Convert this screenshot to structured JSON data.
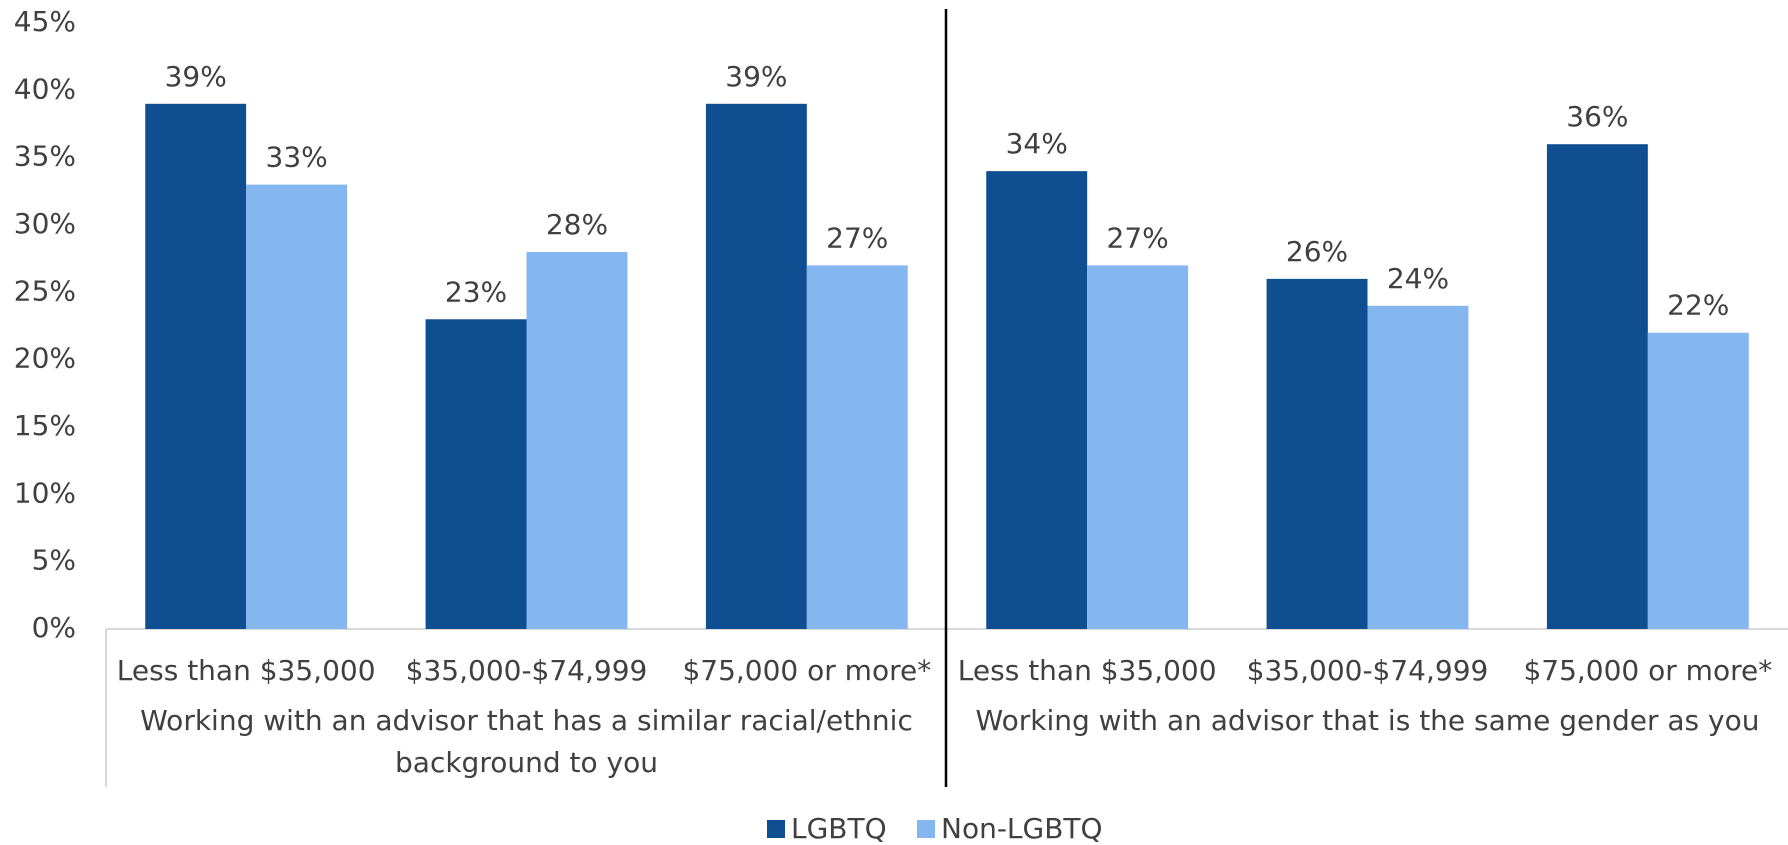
{
  "chart_data": {
    "type": "bar",
    "groups": [
      {
        "label": "Working with an advisor that has a similar racial/ethnic background to you",
        "categories": [
          "Less than $35,000",
          "$35,000-$74,999",
          "$75,000 or more*"
        ]
      },
      {
        "label": "Working with an advisor that is the same gender as you",
        "categories": [
          "Less than $35,000",
          "$35,000-$74,999",
          "$75,000 or more*"
        ]
      }
    ],
    "series": [
      {
        "name": "LGBTQ",
        "color": "#104e92",
        "values": [
          39,
          23,
          39,
          34,
          26,
          36
        ],
        "value_labels": [
          "39%",
          "23%",
          "39%",
          "34%",
          "26%",
          "36%"
        ]
      },
      {
        "name": "Non-LGBTQ",
        "color": "#84b6f0",
        "values": [
          33,
          28,
          27,
          27,
          24,
          22
        ],
        "value_labels": [
          "33%",
          "28%",
          "27%",
          "27%",
          "24%",
          "22%"
        ]
      }
    ],
    "ylim": [
      0,
      45
    ],
    "yticks": [
      {
        "value": 0,
        "label": "0%"
      },
      {
        "value": 5,
        "label": "5%"
      },
      {
        "value": 10,
        "label": "10%"
      },
      {
        "value": 15,
        "label": "15%"
      },
      {
        "value": 20,
        "label": "20%"
      },
      {
        "value": 25,
        "label": "25%"
      },
      {
        "value": 30,
        "label": "30%"
      },
      {
        "value": 35,
        "label": "35%"
      },
      {
        "value": 40,
        "label": "40%"
      },
      {
        "value": 45,
        "label": "45%"
      }
    ],
    "legend": "bottom"
  }
}
